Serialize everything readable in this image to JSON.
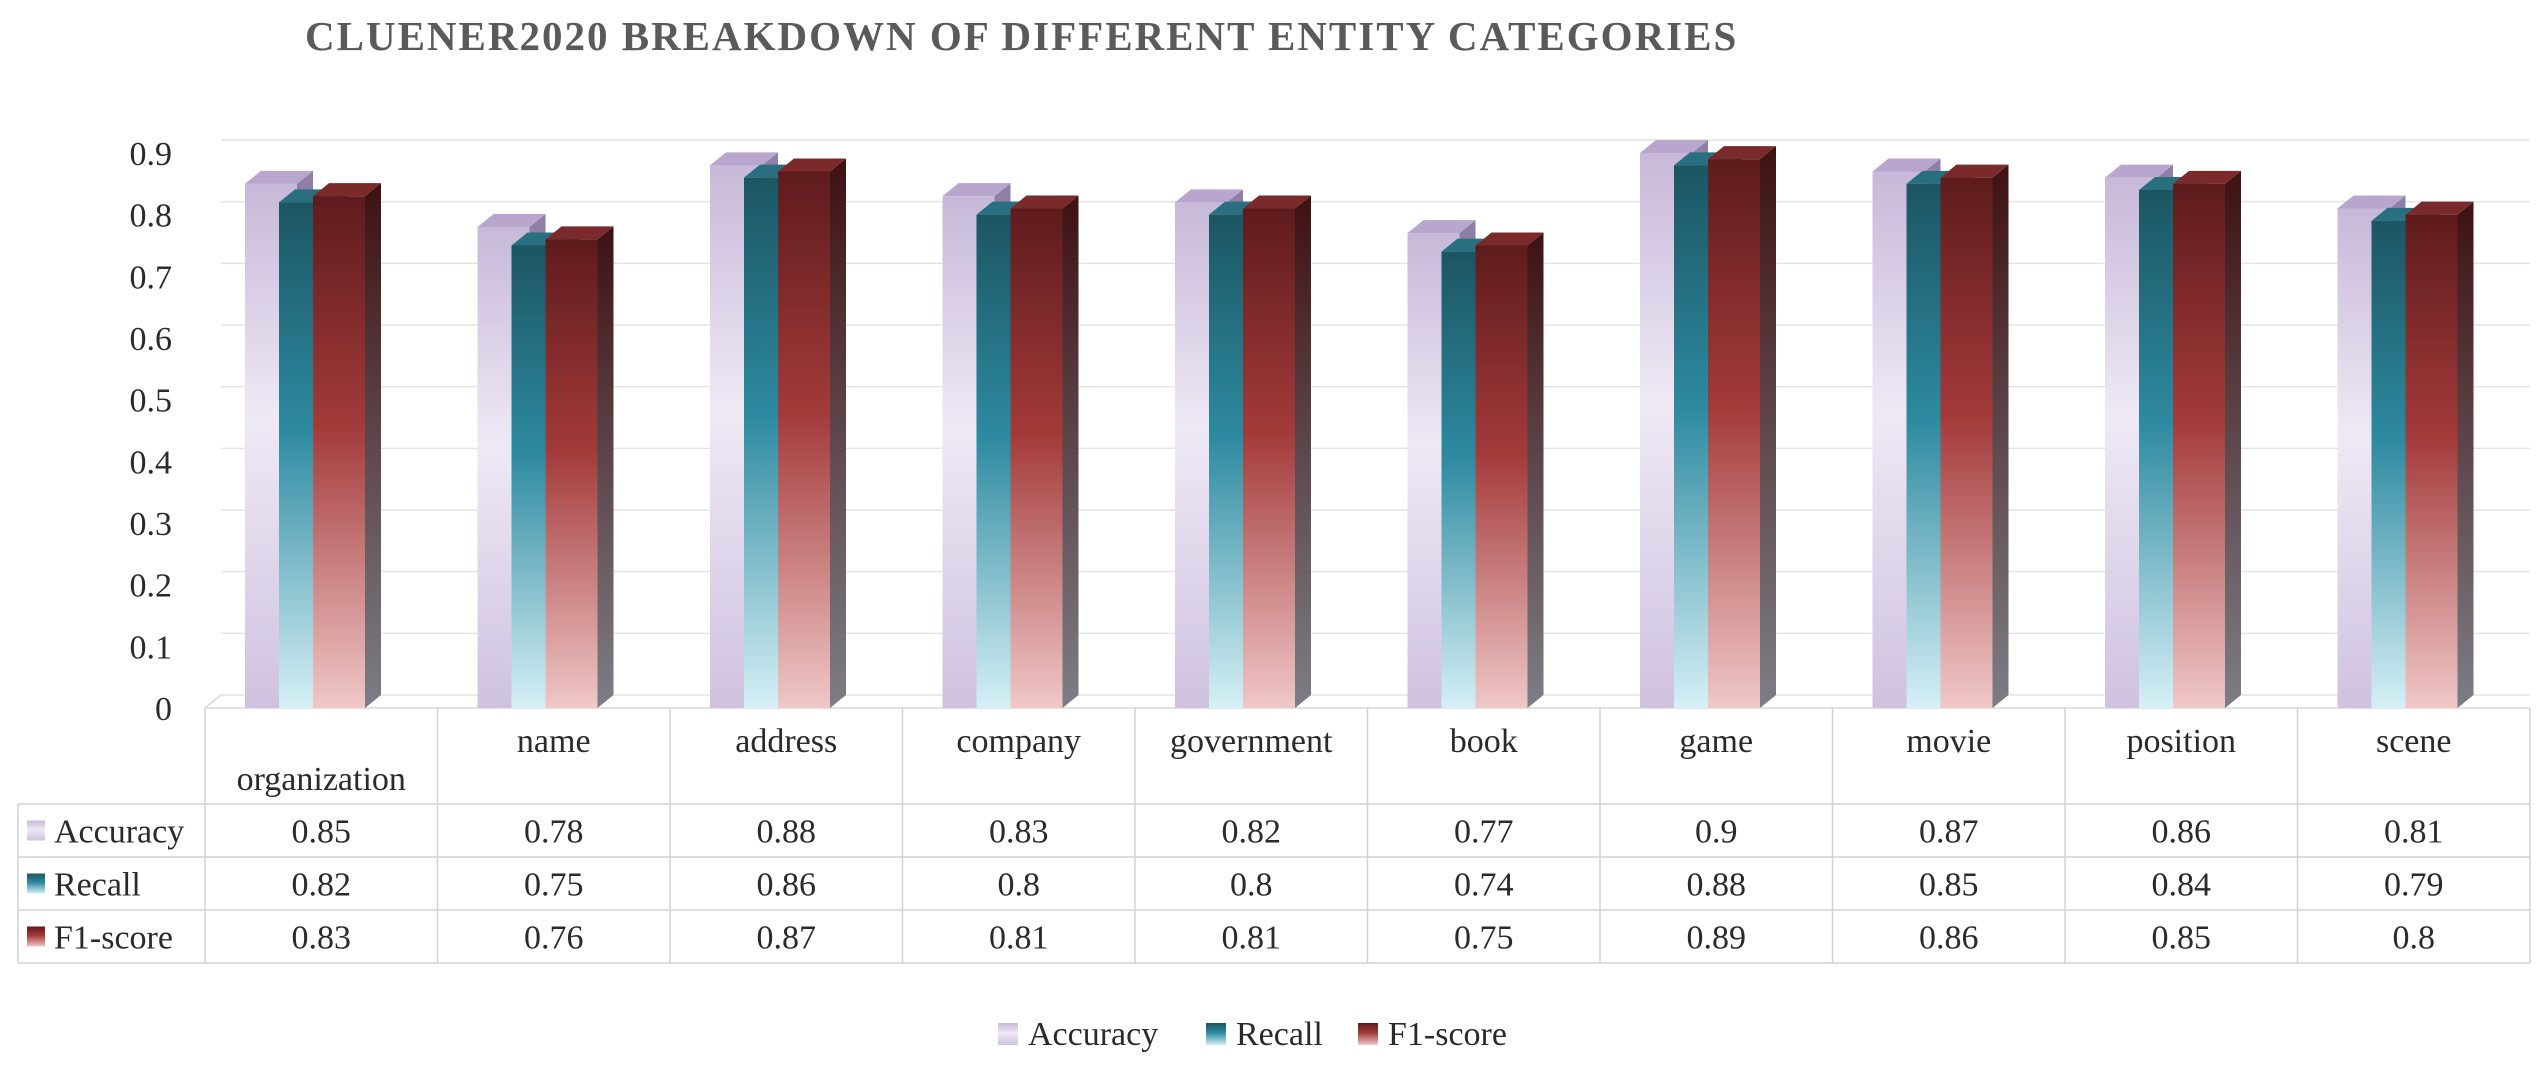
{
  "chart_data": {
    "type": "bar",
    "title": "CLUENER2020 BREAKDOWN OF DIFFERENT ENTITY CATEGORIES",
    "xlabel": "",
    "ylabel": "",
    "ylim": [
      0,
      0.9
    ],
    "yticks": [
      "0",
      "0.1",
      "0.2",
      "0.3",
      "0.4",
      "0.5",
      "0.6",
      "0.7",
      "0.8",
      "0.9"
    ],
    "grid": true,
    "legend_position": "bottom",
    "has_data_table": true,
    "categories": [
      "organization",
      "name",
      "address",
      "company",
      "government",
      "book",
      "game",
      "movie",
      "position",
      "scene"
    ],
    "series": [
      {
        "name": "Accuracy",
        "values": [
          0.85,
          0.78,
          0.88,
          0.83,
          0.82,
          0.77,
          0.9,
          0.87,
          0.86,
          0.81
        ],
        "labels": [
          "0.85",
          "0.78",
          "0.88",
          "0.83",
          "0.82",
          "0.77",
          "0.9",
          "0.87",
          "0.86",
          "0.81"
        ],
        "colors": {
          "top": "#c7b8d9",
          "mid": "#efe9f5",
          "bottom": "#cfc2e0",
          "side": "#8f7fa8",
          "cap": "#b8a6cf"
        }
      },
      {
        "name": "Recall",
        "values": [
          0.82,
          0.75,
          0.86,
          0.8,
          0.8,
          0.74,
          0.88,
          0.85,
          0.84,
          0.79
        ],
        "labels": [
          "0.82",
          "0.75",
          "0.86",
          "0.8",
          "0.8",
          "0.74",
          "0.88",
          "0.85",
          "0.84",
          "0.79"
        ],
        "colors": {
          "top": "#1c5562",
          "mid": "#2d8aa0",
          "bottom": "#d6f0f6",
          "side": "#123f49",
          "cap": "#2a6f7f"
        }
      },
      {
        "name": "F1-score",
        "values": [
          0.83,
          0.76,
          0.87,
          0.81,
          0.81,
          0.75,
          0.89,
          0.86,
          0.85,
          0.8
        ],
        "labels": [
          "0.83",
          "0.76",
          "0.87",
          "0.81",
          "0.81",
          "0.75",
          "0.89",
          "0.86",
          "0.85",
          "0.8"
        ],
        "colors": {
          "top": "#5e1b1c",
          "mid": "#a33a3a",
          "bottom": "#f0c7c7",
          "side": "#3e1112",
          "cap": "#7a2a2a"
        }
      }
    ]
  }
}
